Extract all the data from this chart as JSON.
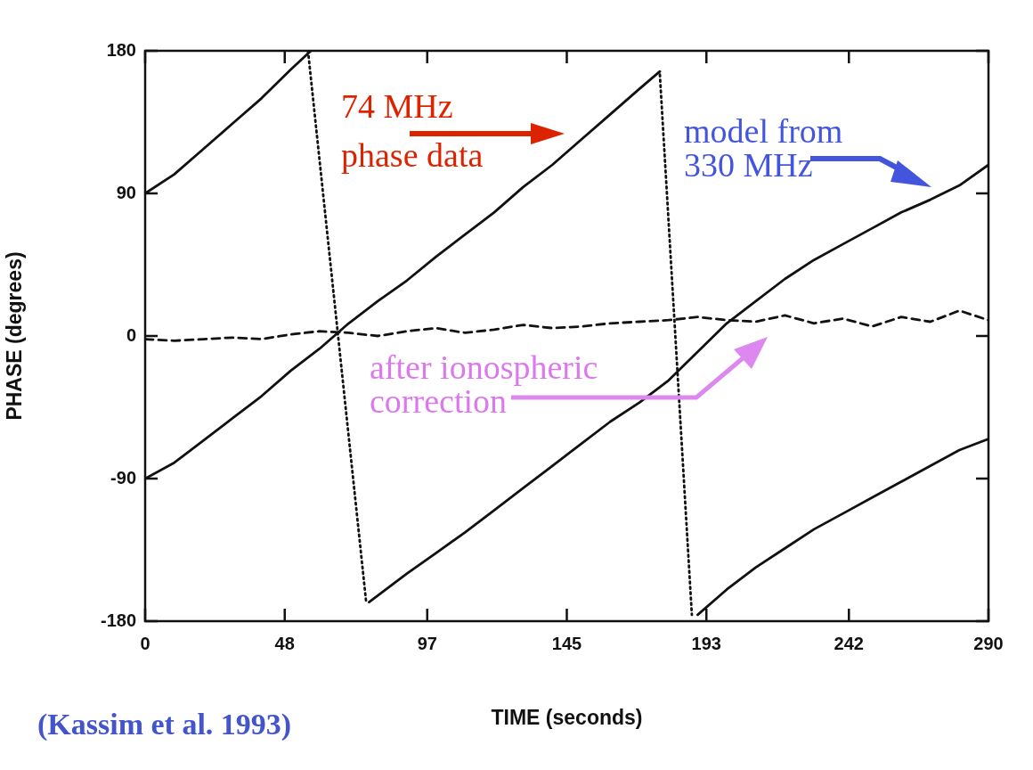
{
  "chart_data": {
    "type": "line",
    "xlabel": "TIME (seconds)",
    "ylabel": "PHASE (degrees)",
    "xlim": [
      0,
      290
    ],
    "xticks": [
      0,
      48,
      97,
      145,
      193,
      242,
      290
    ],
    "ylim": [
      -180,
      180
    ],
    "yticks": [
      -180,
      -90,
      0,
      90,
      180
    ],
    "grid": false,
    "marker": "none",
    "annotations": [
      "74 MHz phase data",
      "model from 330 MHz",
      "after ionospheric correction",
      "(Kassim et al. 1993)"
    ],
    "series": [
      {
        "color": "#111111",
        "line_style": "solid",
        "x": [
          0,
          10,
          20,
          30,
          40,
          50,
          57
        ],
        "values": [
          90,
          102,
          118,
          134,
          150,
          168,
          180
        ]
      },
      {
        "color": "#111111",
        "line_style": "solid",
        "x": [
          0,
          10,
          20,
          30,
          40,
          50,
          60,
          70,
          80,
          90,
          100,
          110,
          120,
          130,
          140,
          150,
          160,
          170,
          177
        ],
        "values": [
          -90,
          -80,
          -66,
          -52,
          -38,
          -22,
          -8,
          8,
          22,
          35,
          50,
          64,
          78,
          94,
          108,
          124,
          140,
          156,
          167
        ]
      },
      {
        "color": "#111111",
        "line_style": "solid",
        "x": [
          77,
          90,
          100,
          110,
          120,
          130,
          140,
          150,
          160,
          170,
          180,
          190,
          200,
          210,
          220,
          230,
          240,
          250,
          260,
          270,
          280,
          290
        ],
        "values": [
          -168,
          -150,
          -137,
          -124,
          -110,
          -96,
          -82,
          -68,
          -54,
          -42,
          -28,
          -10,
          8,
          22,
          36,
          48,
          58,
          68,
          78,
          86,
          95,
          108
        ]
      },
      {
        "color": "#111111",
        "line_style": "solid",
        "x": [
          190,
          200,
          210,
          220,
          230,
          240,
          250,
          260,
          270,
          280,
          290
        ],
        "values": [
          -176,
          -160,
          -146,
          -134,
          -122,
          -112,
          -102,
          -92,
          -82,
          -72,
          -65
        ]
      },
      {
        "color": "#111111",
        "line_style": "dashed",
        "x": [
          0,
          10,
          20,
          30,
          40,
          50,
          60,
          70,
          80,
          90,
          100,
          110,
          120,
          130,
          140,
          150,
          160,
          170,
          180,
          190,
          200,
          210,
          220,
          230,
          240,
          250,
          260,
          270,
          280,
          290
        ],
        "values": [
          -2,
          -3,
          -2,
          -1,
          -2,
          1,
          3,
          2,
          0,
          3,
          5,
          2,
          4,
          7,
          5,
          6,
          8,
          9,
          10,
          12,
          10,
          9,
          13,
          8,
          11,
          6,
          12,
          9,
          16,
          10
        ]
      },
      {
        "color": "#111111",
        "line_style": "dotted",
        "x": [
          56,
          76
        ],
        "values": [
          180,
          -168
        ]
      },
      {
        "color": "#111111",
        "line_style": "dotted",
        "x": [
          177,
          188
        ],
        "values": [
          165,
          -176
        ]
      }
    ]
  }
}
